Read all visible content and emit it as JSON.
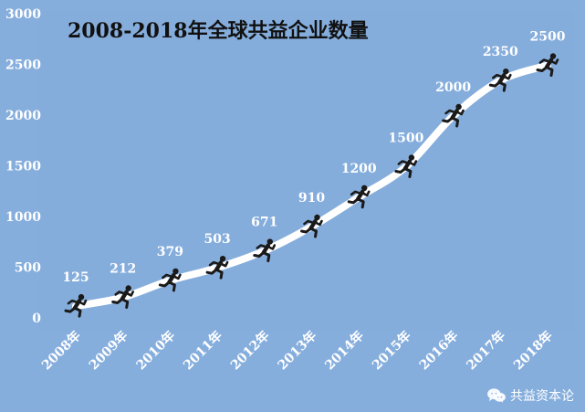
{
  "chart_data": {
    "type": "line",
    "title": "2008-2018年全球共益企业数量",
    "xlabel": "",
    "ylabel": "",
    "categories": [
      "2008年",
      "2009年",
      "2010年",
      "2011年",
      "2012年",
      "2013年",
      "2014年",
      "2015年",
      "2016年",
      "2017年",
      "2018年"
    ],
    "values": [
      125,
      212,
      379,
      503,
      671,
      910,
      1200,
      1500,
      2000,
      2350,
      2500
    ],
    "ylim": [
      0,
      3000
    ],
    "yticks": [
      0,
      500,
      1000,
      1500,
      2000,
      2500,
      3000
    ],
    "grid": false,
    "legend": "none",
    "marker_icon": "running-person-icon"
  },
  "colors": {
    "panel_background": "#86AEDD",
    "plot_background": "#85ADDC",
    "line": "#FFFFFF",
    "text": "#FFFFFF",
    "title": "#111111",
    "marker": "#1A1A1A"
  },
  "watermark": {
    "icon": "wechat-icon",
    "text": "共益资本论"
  }
}
